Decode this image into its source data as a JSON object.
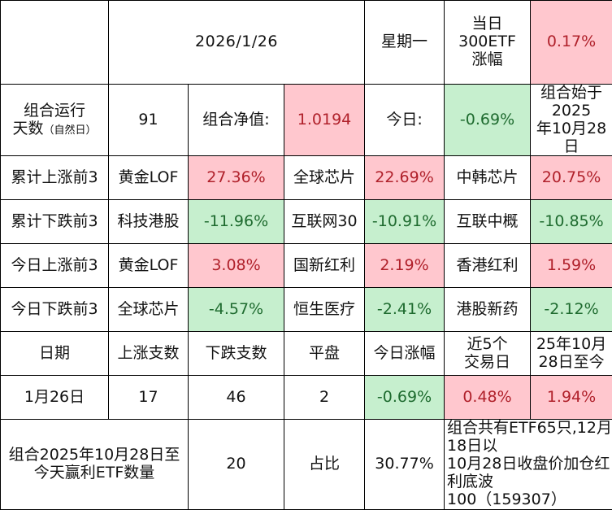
{
  "header": {
    "date": "2026/1/26",
    "weekday": "星期一",
    "idx_label_l1": "当日",
    "idx_label_l2": "300ETF",
    "idx_label_l3": "涨幅",
    "idx_value": "0.17%"
  },
  "run": {
    "label_l1": "组合运行",
    "label_l2": "天数",
    "label_note": "（自然日）",
    "days": "91",
    "nav_label": "组合净值:",
    "nav_value": "1.0194",
    "today_label": "今日:",
    "today_value": "-0.69%",
    "since_l1": "组合始于2025",
    "since_l2": "年10月28日"
  },
  "rankings": [
    {
      "label": "累计上涨前3",
      "items": [
        {
          "name": "黄金LOF",
          "value": "27.36%"
        },
        {
          "name": "全球芯片",
          "value": "22.69%"
        },
        {
          "name": "中韩芯片",
          "value": "20.75%"
        }
      ]
    },
    {
      "label": "累计下跌前3",
      "items": [
        {
          "name": "科技港股",
          "value": "-11.96%"
        },
        {
          "name": "互联网30",
          "value": "-10.91%"
        },
        {
          "name": "互联中概",
          "value": "-10.85%"
        }
      ]
    },
    {
      "label": "今日上涨前3",
      "items": [
        {
          "name": "黄金LOF",
          "value": "3.08%"
        },
        {
          "name": "国新红利",
          "value": "2.19%"
        },
        {
          "name": "香港红利",
          "value": "1.59%"
        }
      ]
    },
    {
      "label": "今日下跌前3",
      "items": [
        {
          "name": "全球芯片",
          "value": "-4.57%"
        },
        {
          "name": "恒生医疗",
          "value": "-2.41%"
        },
        {
          "name": "港股新药",
          "value": "-2.12%"
        }
      ]
    }
  ],
  "stats_header": {
    "date": "日期",
    "up": "上涨支数",
    "down": "下跌支数",
    "flat": "平盘",
    "today": "今日涨幅",
    "recent5_l1": "近5个",
    "recent5_l2": "交易日",
    "since_l1": "25年10月",
    "since_l2": "28日至今"
  },
  "stats_row": {
    "date": "1月26日",
    "up": "17",
    "down": "46",
    "flat": "2",
    "today": "-0.69%",
    "recent5": "0.48%",
    "since": "1.94%"
  },
  "footer": {
    "label_l1": "组合2025年10月28日至",
    "label_l2": "今天赢利ETF数量",
    "count": "20",
    "ratio_label": "占比",
    "ratio_value": "30.77%",
    "note_l1": "组合共有ETF65只,12月18日以",
    "note_l2": "10月28日收盘价加仓红利底波",
    "note_l3": "100（159307）"
  }
}
